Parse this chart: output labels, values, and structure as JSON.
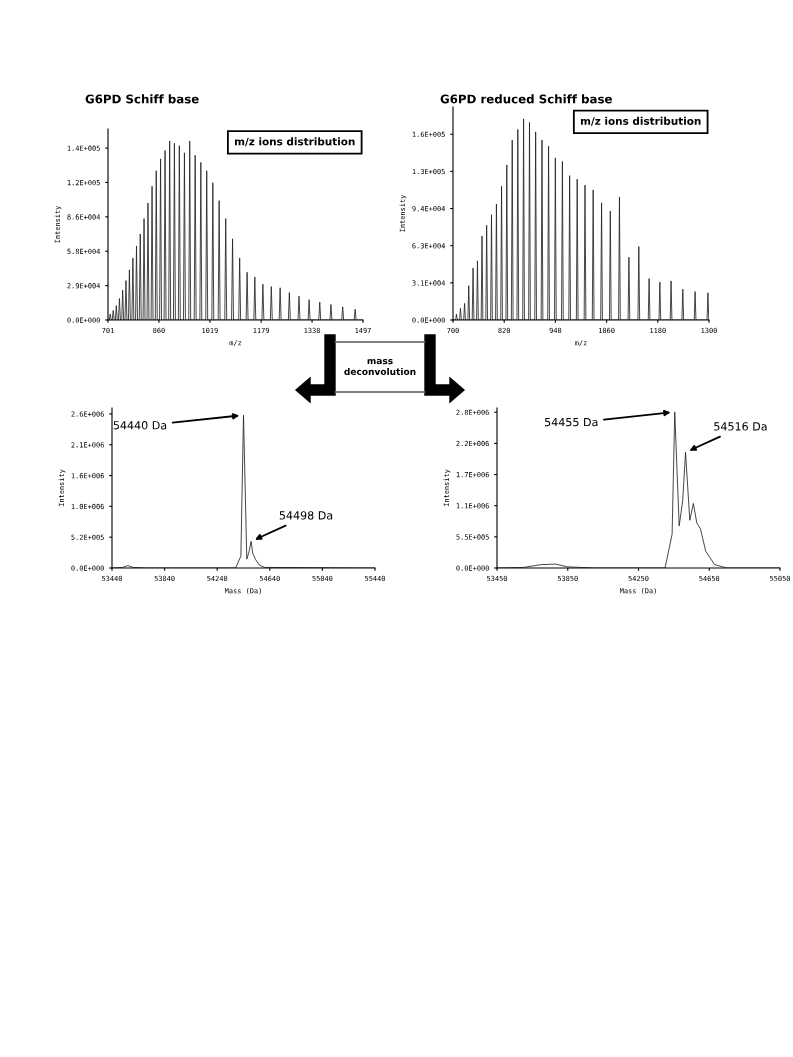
{
  "chart_data": [
    {
      "type": "line",
      "title": "G6PD Schiff base",
      "xlabel": "m/z",
      "ylabel": "Intensity",
      "xlim": [
        701,
        1497
      ],
      "ylim": [
        0,
        160000
      ],
      "xticks": [
        701,
        860,
        1019,
        1179,
        1338,
        1497
      ],
      "yticks": [
        {
          "value": 0,
          "label": "0.0E+000"
        },
        {
          "value": 28800,
          "label": "2.9E+004"
        },
        {
          "value": 57600,
          "label": "5.8E+004"
        },
        {
          "value": 86400,
          "label": "8.6E+004"
        },
        {
          "value": 115200,
          "label": "1.2E+005"
        },
        {
          "value": 144000,
          "label": "1.4E+005"
        }
      ],
      "annotations": [
        "m/z ions distribution"
      ],
      "x": [
        701,
        705.0,
        708.0,
        711.0,
        714.3,
        717.3,
        720.3,
        723.9,
        726.9,
        729.9,
        733.7,
        736.7,
        739.7,
        743.8,
        746.8,
        749.8,
        754.1,
        757.1,
        760.1,
        764.8,
        767.8,
        770.8,
        775.7,
        778.7,
        781.7,
        787.0,
        790.0,
        793.0,
        798.6,
        801.6,
        804.6,
        810.5,
        813.5,
        816.5,
        822.8,
        825.8,
        828.8,
        835.5,
        838.5,
        841.5,
        848.6,
        851.6,
        854.6,
        862.1,
        865.1,
        868.1,
        876.1,
        879.1,
        882.1,
        890.5,
        893.5,
        896.5,
        905.3,
        908.3,
        911.3,
        920.7,
        923.7,
        926.7,
        936.6,
        939.6,
        942.6,
        953.1,
        956.1,
        959.1,
        970.1,
        973.1,
        976.1,
        987.8,
        990.8,
        993.8,
        1006.2,
        1009.2,
        1012.2,
        1025.2,
        1028.2,
        1031.2,
        1044.9,
        1047.9,
        1050.9,
        1065.5,
        1068.5,
        1071.5,
        1086.8,
        1089.8,
        1092.8,
        1109.0,
        1112.0,
        1115.0,
        1132.2,
        1135.2,
        1138.2,
        1156.3,
        1159.3,
        1162.3,
        1181.5,
        1184.5,
        1187.5,
        1207.8,
        1210.8,
        1213.8,
        1235.3,
        1238.3,
        1241.3,
        1264.1,
        1267.1,
        1270.1,
        1294.2,
        1297.2,
        1300.2,
        1325.8,
        1328.8,
        1331.8,
        1359.0,
        1362.0,
        1365.0,
        1393.9,
        1396.9,
        1399.9,
        1430.6,
        1433.6,
        1436.6,
        1469.4,
        1472.4,
        1475.4,
        1497
      ],
      "series": [
        {
          "color": "#222222",
          "values": [
            0,
            0,
            5000,
            0,
            0,
            8000,
            0,
            0,
            12000,
            0,
            0,
            18000,
            0,
            0,
            25000,
            0,
            0,
            33000,
            0,
            0,
            42000,
            0,
            0,
            52000,
            0,
            0,
            62000,
            0,
            0,
            72000,
            0,
            0,
            85000,
            0,
            0,
            98000,
            0,
            0,
            112000,
            0,
            0,
            125000,
            0,
            0,
            135000,
            0,
            0,
            142000,
            0,
            0,
            150000,
            0,
            0,
            148000,
            0,
            0,
            146000,
            0,
            0,
            140000,
            0,
            0,
            150000,
            0,
            0,
            138000,
            0,
            0,
            132000,
            0,
            0,
            125000,
            0,
            0,
            115000,
            0,
            0,
            100000,
            0,
            0,
            85000,
            0,
            0,
            68000,
            0,
            0,
            52000,
            0,
            0,
            40000,
            0,
            0,
            36000,
            0,
            0,
            30000,
            0,
            0,
            28000,
            0,
            0,
            27000,
            0,
            0,
            23000,
            0,
            0,
            20000,
            0,
            0,
            17000,
            0,
            0,
            15000,
            0,
            0,
            13000,
            0,
            0,
            11000,
            0,
            0,
            9000,
            0,
            0
          ]
        }
      ]
    },
    {
      "type": "line",
      "title": "G6PD reduced Schiff base",
      "xlabel": "m/z",
      "ylabel": "Intensity",
      "xlim": [
        700,
        1300
      ],
      "ylim": [
        0,
        180000
      ],
      "xticks": [
        700,
        820,
        940,
        1060,
        1180,
        1300
      ],
      "yticks": [
        {
          "value": 0,
          "label": "0.0E+000"
        },
        {
          "value": 31400,
          "label": "3.1E+004"
        },
        {
          "value": 62800,
          "label": "6.3E+004"
        },
        {
          "value": 94200,
          "label": "9.4E+004"
        },
        {
          "value": 125600,
          "label": "1.3E+005"
        },
        {
          "value": 157000,
          "label": "1.6E+005"
        }
      ],
      "annotations": [
        "m/z ions distribution"
      ],
      "x": [
        700,
        706.2,
        708.2,
        710.2,
        715.5,
        717.5,
        719.5,
        725.1,
        727.1,
        729.1,
        734.9,
        736.9,
        738.9,
        745.0,
        747.0,
        749.0,
        755.3,
        757.3,
        759.3,
        766.0,
        768.0,
        770.0,
        776.9,
        778.9,
        780.9,
        788.2,
        790.2,
        792.2,
        799.8,
        801.8,
        803.8,
        811.8,
        813.8,
        815.8,
        824.1,
        826.1,
        828.1,
        836.8,
        838.8,
        840.8,
        849.9,
        851.9,
        853.9,
        863.4,
        865.4,
        867.4,
        877.3,
        879.3,
        881.3,
        891.7,
        893.7,
        895.7,
        906.6,
        908.6,
        910.6,
        922.0,
        924.0,
        926.0,
        937.9,
        939.9,
        941.9,
        954.4,
        956.4,
        958.4,
        971.4,
        973.4,
        975.4,
        989.1,
        991.1,
        993.1,
        1007.4,
        1009.4,
        1011.4,
        1026.5,
        1028.5,
        1030.5,
        1046.2,
        1048.2,
        1050.2,
        1066.7,
        1068.7,
        1070.7,
        1088.1,
        1090.1,
        1092.1,
        1110.3,
        1112.3,
        1114.3,
        1133.5,
        1135.5,
        1137.5,
        1157.6,
        1159.6,
        1161.6,
        1182.8,
        1184.8,
        1186.8,
        1209.1,
        1211.1,
        1213.1,
        1236.6,
        1238.6,
        1240.6,
        1265.4,
        1267.4,
        1269.4,
        1295.5,
        1297.5,
        1299.5,
        1300
      ],
      "series": [
        {
          "color": "#222222",
          "values": [
            0,
            0,
            5000,
            0,
            0,
            10000,
            0,
            0,
            14000,
            0,
            0,
            29000,
            0,
            0,
            44000,
            0,
            0,
            50000,
            0,
            0,
            71000,
            0,
            0,
            80000,
            0,
            0,
            89000,
            0,
            0,
            98000,
            0,
            0,
            113000,
            0,
            0,
            131000,
            0,
            0,
            152000,
            0,
            0,
            161000,
            0,
            0,
            170000,
            0,
            0,
            167000,
            0,
            0,
            159000,
            0,
            0,
            152000,
            0,
            0,
            147000,
            0,
            0,
            137000,
            0,
            0,
            134000,
            0,
            0,
            122000,
            0,
            0,
            119000,
            0,
            0,
            114000,
            0,
            0,
            110000,
            0,
            0,
            99000,
            0,
            0,
            92000,
            0,
            0,
            104000,
            0,
            0,
            53000,
            0,
            0,
            62000,
            0,
            0,
            35000,
            0,
            0,
            32000,
            0,
            0,
            33000,
            0,
            0,
            26000,
            0,
            0,
            24000,
            0,
            0,
            23000,
            0,
            0
          ]
        }
      ]
    },
    {
      "type": "other",
      "annotations": [
        "mass\ndeconvolution"
      ]
    },
    {
      "type": "line",
      "xlabel": "Mass (Da)",
      "ylabel": "Intensity",
      "xlim": [
        53440,
        55440
      ],
      "ylim": [
        0,
        2700000
      ],
      "xticks": [
        53440,
        53840,
        54240,
        54640,
        55040,
        55440
      ],
      "yticks": [
        {
          "value": 0,
          "label": "0.0E+000"
        },
        {
          "value": 520000,
          "label": "5.2E+005"
        },
        {
          "value": 1040000,
          "label": "1.0E+006"
        },
        {
          "value": 1560000,
          "label": "1.6E+006"
        },
        {
          "value": 2080000,
          "label": "2.1E+006"
        },
        {
          "value": 2600000,
          "label": "2.6E+006"
        }
      ],
      "annotations": [
        {
          "text": "54440 Da",
          "x": 54440,
          "y": 2580000
        },
        {
          "text": "54498 Da",
          "x": 54498,
          "y": 450000
        }
      ],
      "x": [
        53440,
        53520,
        53560,
        53600,
        53700,
        54380,
        54420,
        54440,
        54465,
        54485,
        54498,
        54510,
        54530,
        54560,
        54600,
        55440
      ],
      "series": [
        {
          "color": "#222222",
          "values": [
            0,
            10000,
            40000,
            10000,
            0,
            0,
            200000,
            2580000,
            150000,
            300000,
            450000,
            250000,
            150000,
            50000,
            10000,
            0
          ]
        }
      ]
    },
    {
      "type": "line",
      "xlabel": "Mass (Da)",
      "ylabel": "Intensity",
      "xlim": [
        53450,
        55050
      ],
      "ylim": [
        0,
        2850000
      ],
      "xticks": [
        53450,
        53850,
        54250,
        54650,
        55050
      ],
      "yticks": [
        {
          "value": 0,
          "label": "0.0E+000"
        },
        {
          "value": 555000,
          "label": "5.5E+005"
        },
        {
          "value": 1110000,
          "label": "1.1E+006"
        },
        {
          "value": 1665000,
          "label": "1.7E+006"
        },
        {
          "value": 2220000,
          "label": "2.2E+006"
        },
        {
          "value": 2775000,
          "label": "2.8E+006"
        }
      ],
      "annotations": [
        {
          "text": "54455 Da",
          "x": 54455,
          "y": 2780000
        },
        {
          "text": "54516 Da",
          "x": 54516,
          "y": 2060000
        }
      ],
      "x": [
        53450,
        53600,
        53700,
        53780,
        53850,
        54000,
        54400,
        54440,
        54455,
        54480,
        54500,
        54516,
        54540,
        54560,
        54580,
        54600,
        54630,
        54680,
        54750,
        55050
      ],
      "series": [
        {
          "color": "#222222",
          "values": [
            0,
            10000,
            60000,
            70000,
            20000,
            0,
            0,
            600000,
            2780000,
            750000,
            1200000,
            2060000,
            850000,
            1150000,
            800000,
            700000,
            300000,
            60000,
            0,
            0
          ]
        }
      ]
    }
  ]
}
